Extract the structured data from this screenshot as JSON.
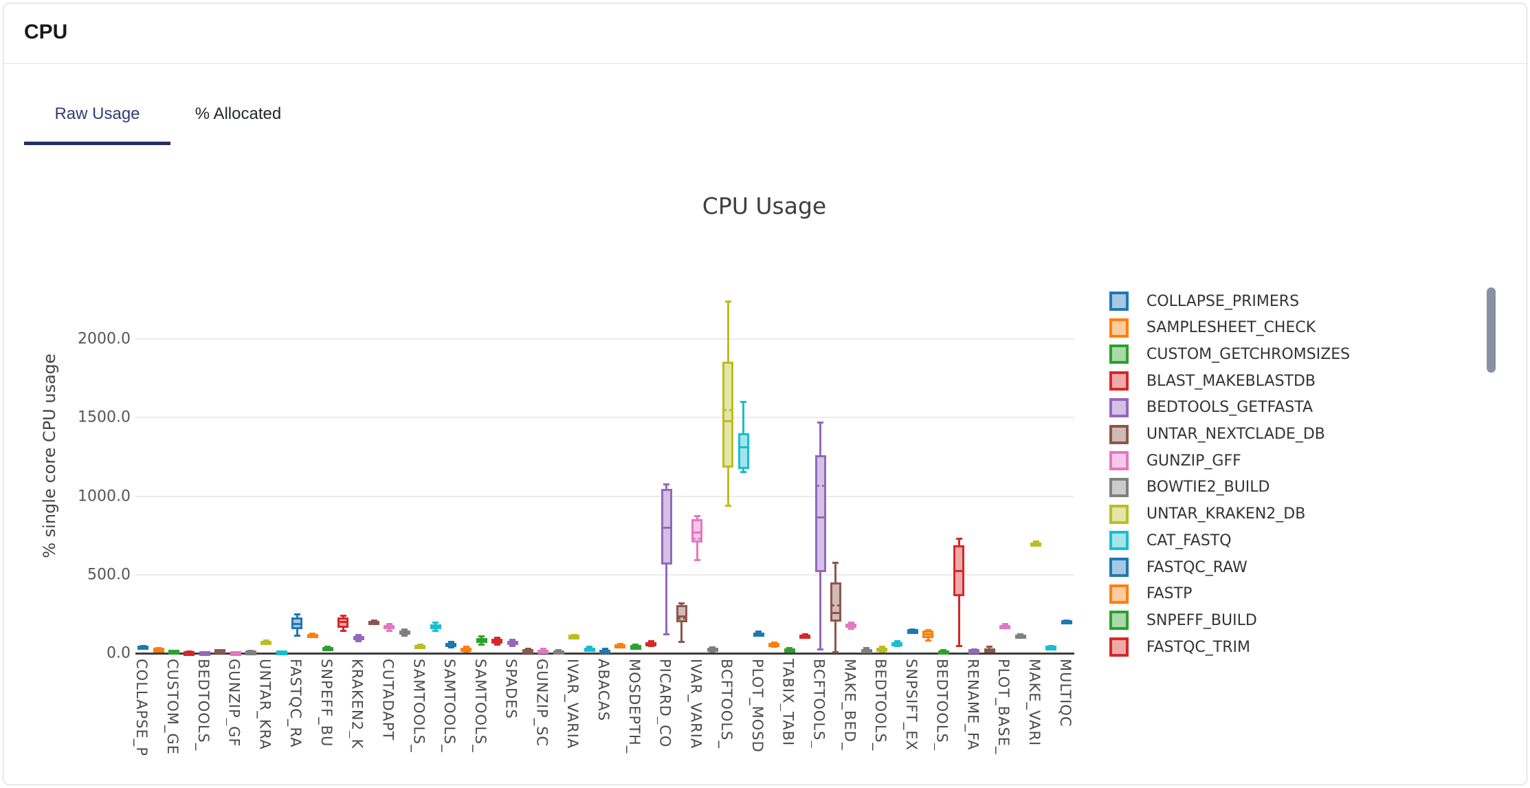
{
  "header": {
    "title": "CPU"
  },
  "tabs": {
    "raw_usage": "Raw Usage",
    "percent_allocated": "% Allocated"
  },
  "colors": {
    "tab_active": "#303d73",
    "tab_underline": "#232e61",
    "scrollbar": "#8790a5"
  },
  "chart_data": {
    "type": "box",
    "title": "CPU Usage",
    "xlabel": "",
    "ylabel": "% single core CPU usage",
    "ylim": [
      0,
      2320
    ],
    "grid": true,
    "legend_position": "right",
    "yticks": [
      {
        "value": 0,
        "label": "0.0"
      },
      {
        "value": 500,
        "label": "500.0"
      },
      {
        "value": 1000,
        "label": "1000.0"
      },
      {
        "value": 1500,
        "label": "1500.0"
      },
      {
        "value": 2000,
        "label": "2000.0"
      }
    ],
    "palette": [
      {
        "name": "blue",
        "line": "#1f77b4",
        "fill": "#a5c9e1"
      },
      {
        "name": "orange",
        "line": "#ff7f0e",
        "fill": "#ffcc9f"
      },
      {
        "name": "green",
        "line": "#2ca02c",
        "fill": "#aad9aa"
      },
      {
        "name": "red",
        "line": "#d62728",
        "fill": "#eea9a9"
      },
      {
        "name": "purple",
        "line": "#9467bd",
        "fill": "#d4c2e5"
      },
      {
        "name": "brown",
        "line": "#8c564b",
        "fill": "#d1bbb7"
      },
      {
        "name": "pink",
        "line": "#e377c2",
        "fill": "#f4c9e7"
      },
      {
        "name": "gray",
        "line": "#7f7f7f",
        "fill": "#cccccc"
      },
      {
        "name": "olive",
        "line": "#bcbd22",
        "fill": "#e4e5a7"
      },
      {
        "name": "cyan",
        "line": "#17becf",
        "fill": "#a2e5ec"
      }
    ],
    "legend": [
      {
        "label": "COLLAPSE_PRIMERS",
        "color": 0
      },
      {
        "label": "SAMPLESHEET_CHECK",
        "color": 1
      },
      {
        "label": "CUSTOM_GETCHROMSIZES",
        "color": 2
      },
      {
        "label": "BLAST_MAKEBLASTDB",
        "color": 3
      },
      {
        "label": "BEDTOOLS_GETFASTA",
        "color": 4
      },
      {
        "label": "UNTAR_NEXTCLADE_DB",
        "color": 5
      },
      {
        "label": "GUNZIP_GFF",
        "color": 6
      },
      {
        "label": "BOWTIE2_BUILD",
        "color": 7
      },
      {
        "label": "UNTAR_KRAKEN2_DB",
        "color": 8
      },
      {
        "label": "CAT_FASTQ",
        "color": 9
      },
      {
        "label": "FASTQC_RAW",
        "color": 0
      },
      {
        "label": "FASTP",
        "color": 1
      },
      {
        "label": "SNPEFF_BUILD",
        "color": 2
      },
      {
        "label": "FASTQC_TRIM",
        "color": 3
      }
    ],
    "series": [
      {
        "label": "COLLAPSE_P",
        "color": 0,
        "low": 30,
        "q1": 35,
        "median": 40,
        "q3": 46,
        "high": 50
      },
      {
        "label": "",
        "color": 1,
        "low": 22,
        "q1": 25,
        "median": 27,
        "q3": 30,
        "high": 33
      },
      {
        "label": "CUSTOM_GE",
        "color": 2,
        "low": 10,
        "q1": 12,
        "median": 14,
        "q3": 17,
        "high": 19
      },
      {
        "label": "",
        "color": 3,
        "low": 5,
        "q1": 7,
        "median": 8,
        "q3": 10,
        "high": 12
      },
      {
        "label": "BEDTOOLS_",
        "color": 4,
        "low": 4,
        "q1": 5,
        "median": 6,
        "q3": 8,
        "high": 10
      },
      {
        "label": "",
        "color": 5,
        "low": 14,
        "q1": 16,
        "median": 18,
        "q3": 20,
        "high": 23
      },
      {
        "label": "GUNZIP_GF",
        "color": 6,
        "low": 3,
        "q1": 5,
        "median": 6,
        "q3": 8,
        "high": 10
      },
      {
        "label": "",
        "color": 7,
        "low": 9,
        "q1": 11,
        "median": 12,
        "q3": 14,
        "high": 16
      },
      {
        "label": "UNTAR_KRA",
        "color": 8,
        "low": 65,
        "q1": 70,
        "median": 73,
        "q3": 77,
        "high": 81
      },
      {
        "label": "",
        "color": 9,
        "low": 6,
        "q1": 8,
        "median": 10,
        "q3": 12,
        "high": 14
      },
      {
        "label": "FASTQC_RA",
        "color": 0,
        "low": 110,
        "q1": 153,
        "median": 185,
        "q3": 228,
        "high": 250
      },
      {
        "label": "",
        "color": 1,
        "low": 108,
        "q1": 113,
        "median": 118,
        "q3": 123,
        "high": 128
      },
      {
        "label": "SNPEFF_BU",
        "color": 2,
        "low": 28,
        "q1": 32,
        "median": 35,
        "q3": 39,
        "high": 43
      },
      {
        "label": "",
        "color": 3,
        "low": 140,
        "q1": 162,
        "median": 197,
        "q3": 228,
        "high": 241
      },
      {
        "label": "KRAKEN2_K",
        "color": 4,
        "low": 75,
        "q1": 88,
        "median": 97,
        "q3": 110,
        "high": 118
      },
      {
        "label": "",
        "color": 5,
        "low": 190,
        "q1": 196,
        "median": 200,
        "q3": 205,
        "high": 210
      },
      {
        "label": "CUTADAPT",
        "color": 6,
        "low": 140,
        "q1": 155,
        "median": 165,
        "q3": 178,
        "high": 188
      },
      {
        "label": "",
        "color": 7,
        "low": 110,
        "q1": 122,
        "median": 132,
        "q3": 145,
        "high": 155
      },
      {
        "label": "SAMTOOLS_",
        "color": 8,
        "low": 30,
        "q1": 40,
        "median": 45,
        "q3": 52,
        "high": 58
      },
      {
        "label": "",
        "color": 9,
        "low": 140,
        "q1": 152,
        "median": 168,
        "q3": 185,
        "high": 198
      },
      {
        "label": "SAMTOOLS_",
        "color": 0,
        "low": 35,
        "q1": 45,
        "median": 55,
        "q3": 65,
        "high": 74
      },
      {
        "label": "",
        "color": 1,
        "low": 8,
        "q1": 17,
        "median": 25,
        "q3": 35,
        "high": 44
      },
      {
        "label": "SAMTOOLS_",
        "color": 2,
        "low": 52,
        "q1": 65,
        "median": 80,
        "q3": 95,
        "high": 109
      },
      {
        "label": "",
        "color": 3,
        "low": 52,
        "q1": 62,
        "median": 75,
        "q3": 90,
        "high": 101
      },
      {
        "label": "SPADES",
        "color": 4,
        "low": 44,
        "q1": 54,
        "median": 65,
        "q3": 78,
        "high": 88
      },
      {
        "label": "",
        "color": 5,
        "low": 8,
        "q1": 13,
        "median": 18,
        "q3": 24,
        "high": 30
      },
      {
        "label": "GUNZIP_SC",
        "color": 6,
        "low": 4,
        "q1": 9,
        "median": 15,
        "q3": 22,
        "high": 30
      },
      {
        "label": "",
        "color": 7,
        "low": 4,
        "q1": 8,
        "median": 12,
        "q3": 17,
        "high": 22
      },
      {
        "label": "IVAR_VARIA",
        "color": 8,
        "low": 101,
        "q1": 105,
        "median": 110,
        "q3": 114,
        "high": 118
      },
      {
        "label": "",
        "color": 9,
        "low": 13,
        "q1": 20,
        "median": 28,
        "q3": 36,
        "high": 44
      },
      {
        "label": "ABACAS",
        "color": 0,
        "low": 4,
        "q1": 9,
        "median": 15,
        "q3": 22,
        "high": 30
      },
      {
        "label": "",
        "color": 1,
        "low": 35,
        "q1": 42,
        "median": 48,
        "q3": 55,
        "high": 61
      },
      {
        "label": "MOSDEPTH_",
        "color": 2,
        "low": 31,
        "q1": 37,
        "median": 44,
        "q3": 50,
        "high": 57
      },
      {
        "label": "",
        "color": 3,
        "low": 44,
        "q1": 52,
        "median": 60,
        "q3": 70,
        "high": 79
      },
      {
        "label": "PICARD_CO",
        "color": 4,
        "low": 120,
        "q1": 565,
        "median": 800,
        "q3": 1046,
        "high": 1076
      },
      {
        "label": "",
        "color": 5,
        "low": 70,
        "q1": 195,
        "median": 235,
        "q3": 305,
        "high": 320,
        "mean": 223
      },
      {
        "label": "IVAR_VARIA",
        "color": 6,
        "low": 590,
        "q1": 705,
        "median": 770,
        "q3": 855,
        "high": 875,
        "mean": 730
      },
      {
        "label": "",
        "color": 7,
        "low": 10,
        "q1": 18,
        "median": 26,
        "q3": 33,
        "high": 40
      },
      {
        "label": "BCFTOOLS_",
        "color": 8,
        "low": 935,
        "q1": 1180,
        "median": 1475,
        "q3": 1855,
        "high": 2240,
        "mean": 1545
      },
      {
        "label": "",
        "color": 9,
        "low": 1150,
        "q1": 1175,
        "median": 1310,
        "q3": 1400,
        "high": 1600
      },
      {
        "label": "PLOT_MOSD",
        "color": 0,
        "low": 115,
        "q1": 121,
        "median": 126,
        "q3": 132,
        "high": 138
      },
      {
        "label": "",
        "color": 1,
        "low": 40,
        "q1": 48,
        "median": 57,
        "q3": 65,
        "high": 72
      },
      {
        "label": "TABIX_TABI",
        "color": 2,
        "low": 8,
        "q1": 15,
        "median": 22,
        "q3": 29,
        "high": 36
      },
      {
        "label": "",
        "color": 3,
        "low": 100,
        "q1": 106,
        "median": 112,
        "q3": 118,
        "high": 124
      },
      {
        "label": "BCFTOOLS_",
        "color": 4,
        "low": 20,
        "q1": 517,
        "median": 866,
        "q3": 1261,
        "high": 1471,
        "mean": 1067
      },
      {
        "label": "",
        "color": 5,
        "low": 5,
        "q1": 202,
        "median": 254,
        "q3": 450,
        "high": 578,
        "mean": 304
      },
      {
        "label": "MAKE_BED_",
        "color": 6,
        "low": 155,
        "q1": 165,
        "median": 175,
        "q3": 188,
        "high": 196
      },
      {
        "label": "",
        "color": 7,
        "low": 9,
        "q1": 14,
        "median": 20,
        "q3": 27,
        "high": 35
      },
      {
        "label": "BEDTOOLS_",
        "color": 8,
        "low": 10,
        "q1": 17,
        "median": 25,
        "q3": 35,
        "high": 44
      },
      {
        "label": "",
        "color": 9,
        "low": 44,
        "q1": 51,
        "median": 60,
        "q3": 70,
        "high": 79
      },
      {
        "label": "SNPSIFT_EX",
        "color": 0,
        "low": 136,
        "q1": 141,
        "median": 145,
        "q3": 149,
        "high": 153
      },
      {
        "label": "",
        "color": 1,
        "low": 79,
        "q1": 96,
        "median": 120,
        "q3": 144,
        "high": 150
      },
      {
        "label": "BEDTOOLS_",
        "color": 2,
        "low": 0,
        "q1": 4,
        "median": 10,
        "q3": 16,
        "high": 22
      },
      {
        "label": "",
        "color": 3,
        "low": 44,
        "q1": 363,
        "median": 521,
        "q3": 687,
        "high": 731
      },
      {
        "label": "RENAME_FA",
        "color": 4,
        "low": 9,
        "q1": 13,
        "median": 18,
        "q3": 22,
        "high": 26
      },
      {
        "label": "",
        "color": 5,
        "low": 13,
        "q1": 18,
        "median": 25,
        "q3": 32,
        "high": 44
      },
      {
        "label": "PLOT_BASE_",
        "color": 6,
        "low": 157,
        "q1": 165,
        "median": 172,
        "q3": 180,
        "high": 188
      },
      {
        "label": "",
        "color": 7,
        "low": 100,
        "q1": 106,
        "median": 112,
        "q3": 118,
        "high": 124
      },
      {
        "label": "MAKE_VARI",
        "color": 8,
        "low": 690,
        "q1": 695,
        "median": 700,
        "q3": 706,
        "high": 712
      },
      {
        "label": "",
        "color": 9,
        "low": 33,
        "q1": 37,
        "median": 40,
        "q3": 44,
        "high": 48
      },
      {
        "label": "MULTIQC",
        "color": 0,
        "low": 195,
        "q1": 199,
        "median": 203,
        "q3": 208,
        "high": 212
      }
    ]
  }
}
